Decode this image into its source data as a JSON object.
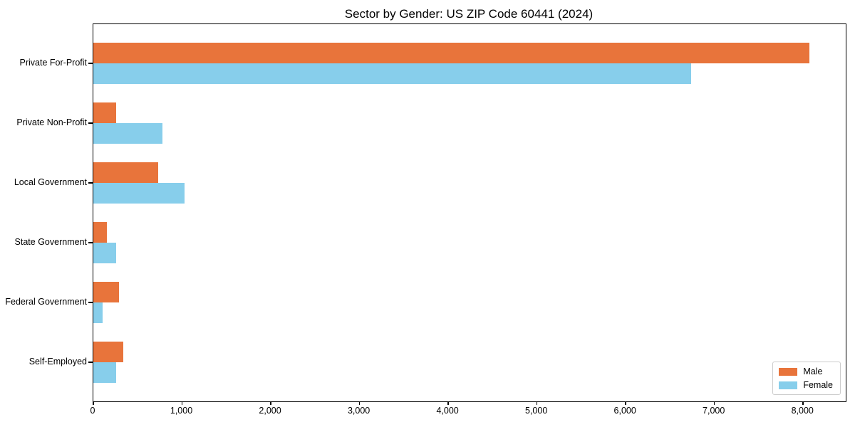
{
  "title": "Sector by Gender: US ZIP Code 60441 (2024)",
  "chart_data": {
    "type": "bar",
    "orientation": "horizontal",
    "title": "Sector by Gender: US ZIP Code 60441 (2024)",
    "categories": [
      "Private For-Profit",
      "Private Non-Profit",
      "Local Government",
      "State Government",
      "Federal Government",
      "Self-Employed"
    ],
    "series": [
      {
        "name": "Male",
        "color": "#e8743b",
        "values": [
          8070,
          255,
          730,
          150,
          285,
          340
        ]
      },
      {
        "name": "Female",
        "color": "#87ceeb",
        "values": [
          6740,
          775,
          1030,
          255,
          105,
          260
        ]
      }
    ],
    "xlabel": "",
    "ylabel": "",
    "xlim": [
      0,
      8480
    ],
    "xticks": [
      0,
      1000,
      2000,
      3000,
      4000,
      5000,
      6000,
      7000,
      8000
    ],
    "tick_label_format": "comma",
    "grid": false,
    "legend_position": "lower right",
    "plot_border_color": "#000000",
    "background_color": "#ffffff"
  }
}
